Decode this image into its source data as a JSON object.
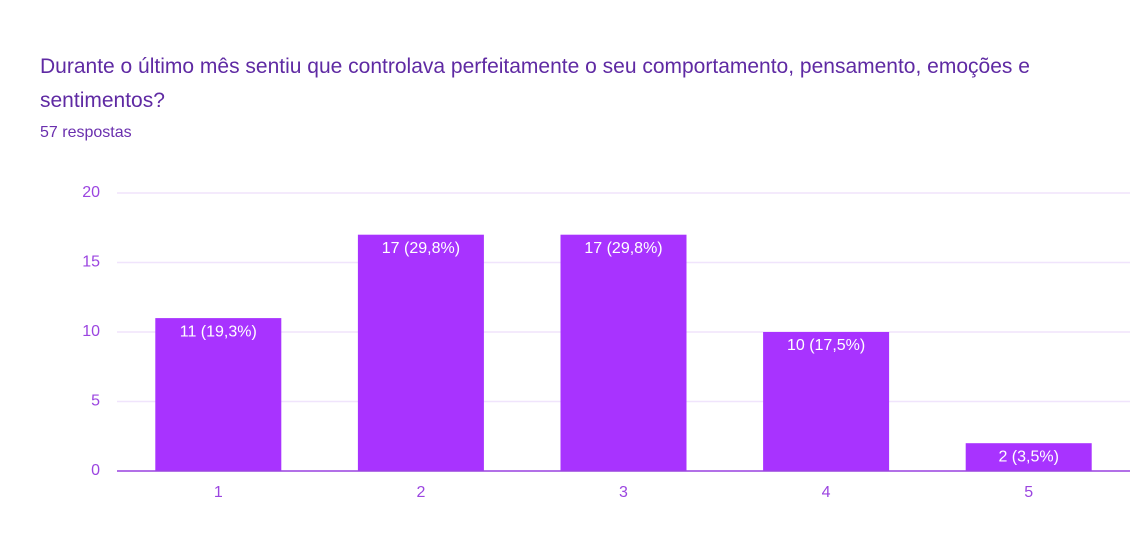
{
  "chart_data": {
    "type": "bar",
    "title": "Durante o último mês sentiu que controlava perfeitamente o seu comportamento, pensamento, emoções e sentimentos?",
    "subtitle": "57 respostas",
    "categories": [
      "1",
      "2",
      "3",
      "4",
      "5"
    ],
    "values": [
      11,
      17,
      17,
      10,
      2
    ],
    "value_labels": [
      "11 (19,3%)",
      "17 (29,8%)",
      "17 (29,8%)",
      "10 (17,5%)",
      "2 (3,5%)"
    ],
    "color": "#a833ff",
    "ylim": [
      0,
      20
    ],
    "yticks": [
      0,
      5,
      10,
      15,
      20
    ],
    "grid": true
  }
}
